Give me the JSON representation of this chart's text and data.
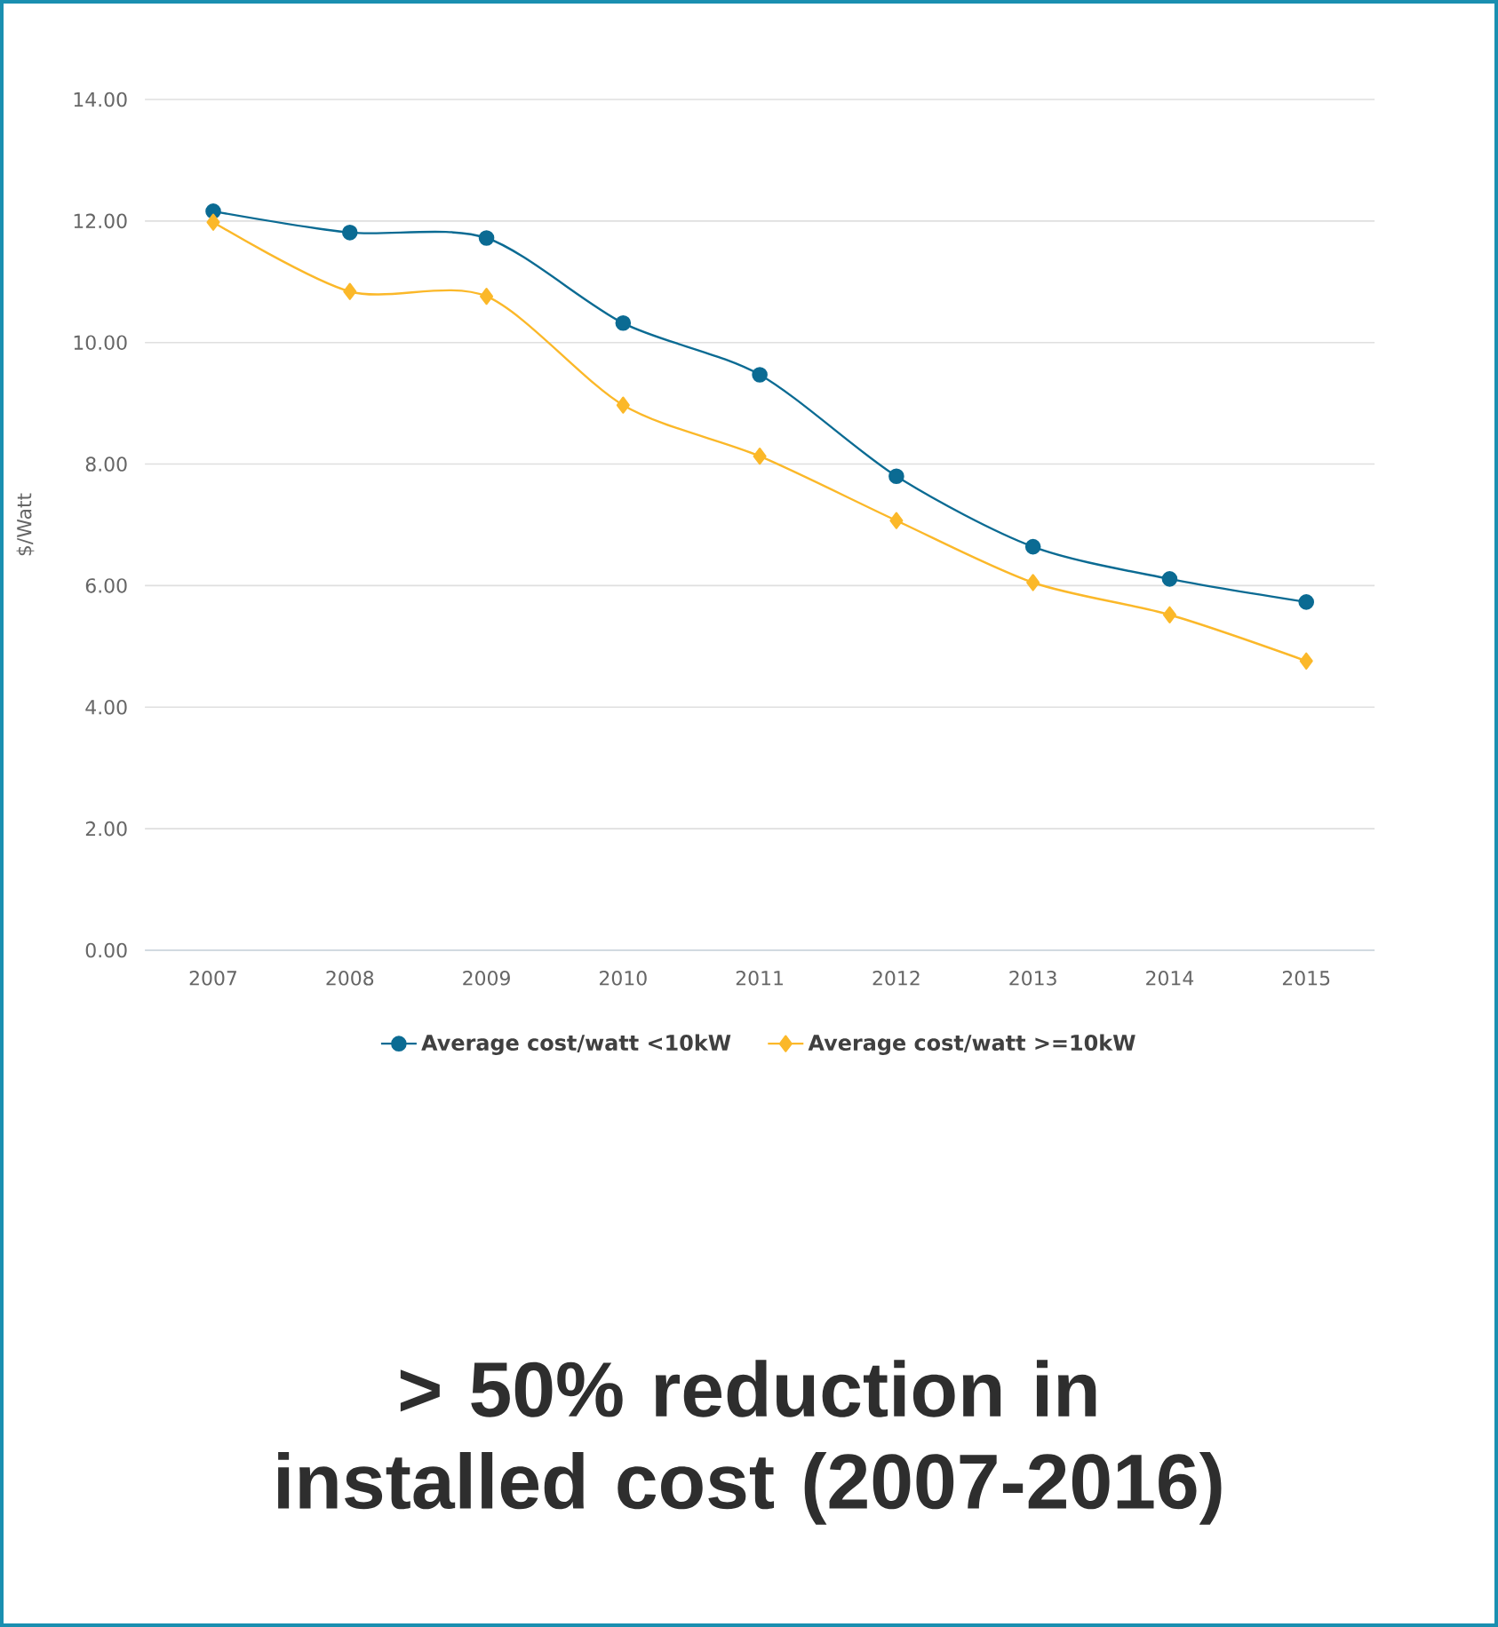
{
  "chart_data": {
    "type": "line",
    "title": "> 50% reduction in installed cost (2007-2016)",
    "ylabel": "$/Watt",
    "categories": [
      "2007",
      "2008",
      "2009",
      "2010",
      "2011",
      "2012",
      "2013",
      "2014",
      "2015"
    ],
    "series": [
      {
        "name": "Average cost/watt <10kW",
        "color": "#0b6b93",
        "marker": "circle",
        "values": [
          12.16,
          11.81,
          11.72,
          10.32,
          9.47,
          7.8,
          6.64,
          6.11,
          5.73
        ]
      },
      {
        "name": "Average cost/watt >=10kW",
        "color": "#fbb829",
        "marker": "diamond",
        "values": [
          11.98,
          10.84,
          10.76,
          8.97,
          8.13,
          7.07,
          6.05,
          5.52,
          4.76
        ]
      }
    ],
    "ylim": [
      0,
      14
    ],
    "yticks": [
      {
        "value": 0,
        "label": "0.00"
      },
      {
        "value": 2,
        "label": "2.00"
      },
      {
        "value": 4,
        "label": "4.00"
      },
      {
        "value": 6,
        "label": "6.00"
      },
      {
        "value": 8,
        "label": "8.00"
      },
      {
        "value": 10,
        "label": "10.00"
      },
      {
        "value": 12,
        "label": "12.00"
      },
      {
        "value": 14,
        "label": "14.00"
      }
    ],
    "grid": "y",
    "legend": "bottom"
  }
}
